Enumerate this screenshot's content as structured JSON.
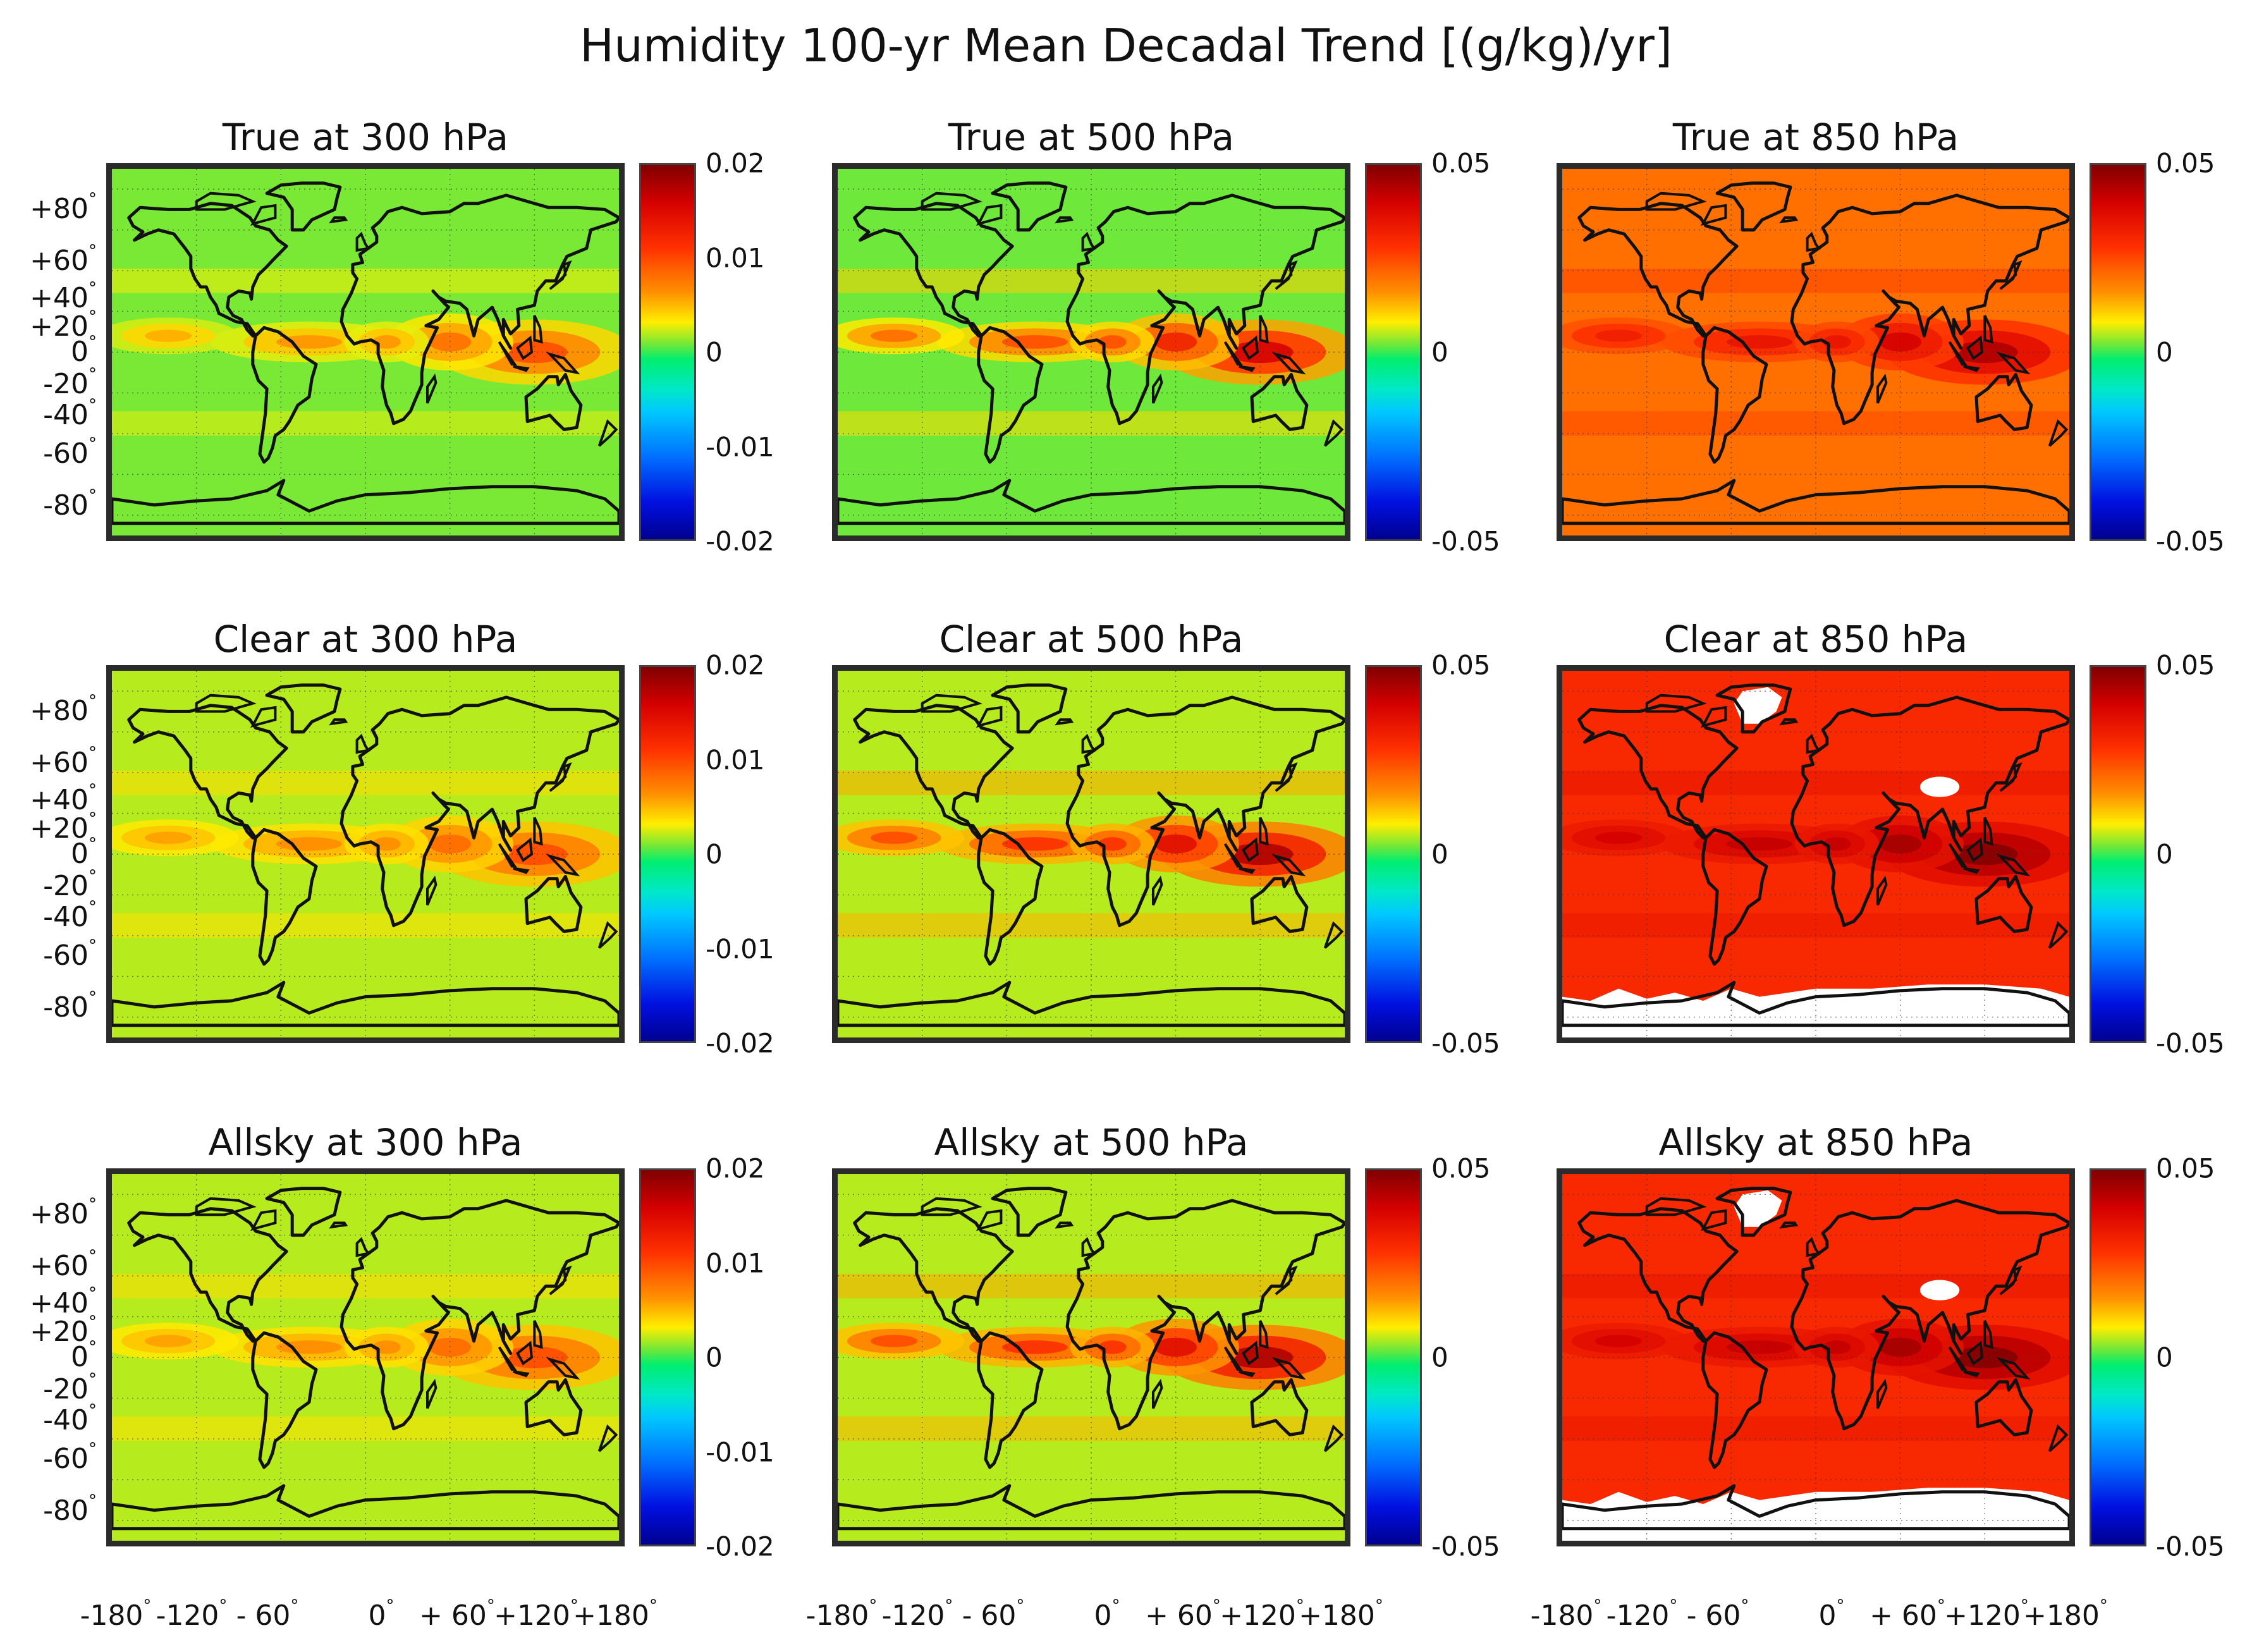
{
  "title": "Humidity 100-yr Mean Decadal Trend [(g/kg)/yr]",
  "lat_labels": [
    "+80",
    "+60",
    "+40",
    "+20",
    "0",
    "-20",
    "-40",
    "-60",
    "-80"
  ],
  "lon_labels": [
    "-180",
    "-120",
    "- 60",
    "0",
    "+ 60",
    "+120",
    "+180"
  ],
  "degree_symbol": "°",
  "colormap": [
    "#800000",
    "#d40000",
    "#ff3000",
    "#ff9000",
    "#ffee00",
    "#6ee83a",
    "#00ee70",
    "#00e8c8",
    "#00c8ff",
    "#0070ff",
    "#0010e0",
    "#00008f"
  ],
  "chart_data": [
    {
      "type": "heatmap",
      "title": "True at 300 hPa",
      "clim": [
        -0.02,
        0.02
      ],
      "colorbar_ticks": [
        "0.02",
        "0.01",
        "0",
        "-0.01",
        "-0.02"
      ],
      "xlim": [
        -180,
        180
      ],
      "ylim": [
        -90,
        90
      ],
      "typical_trend": 0.001,
      "max_trend": 0.01
    },
    {
      "type": "heatmap",
      "title": "True at 500 hPa",
      "clim": [
        -0.05,
        0.05
      ],
      "colorbar_ticks": [
        "0.05",
        "0",
        "-0.05"
      ],
      "xlim": [
        -180,
        180
      ],
      "ylim": [
        -90,
        90
      ],
      "typical_trend": 0.002,
      "max_trend": 0.04
    },
    {
      "type": "heatmap",
      "title": "True at 850 hPa",
      "clim": [
        -0.05,
        0.05
      ],
      "colorbar_ticks": [
        "0.05",
        "0",
        "-0.05"
      ],
      "xlim": [
        -180,
        180
      ],
      "ylim": [
        -90,
        90
      ],
      "typical_trend": 0.02,
      "max_trend": 0.045
    },
    {
      "type": "heatmap",
      "title": "Clear at 300 hPa",
      "clim": [
        -0.02,
        0.02
      ],
      "colorbar_ticks": [
        "0.02",
        "0.01",
        "0",
        "-0.01",
        "-0.02"
      ],
      "xlim": [
        -180,
        180
      ],
      "ylim": [
        -90,
        90
      ],
      "typical_trend": 0.002,
      "max_trend": 0.01
    },
    {
      "type": "heatmap",
      "title": "Clear at 500 hPa",
      "clim": [
        -0.05,
        0.05
      ],
      "colorbar_ticks": [
        "0.05",
        "0",
        "-0.05"
      ],
      "xlim": [
        -180,
        180
      ],
      "ylim": [
        -90,
        90
      ],
      "typical_trend": 0.005,
      "max_trend": 0.045
    },
    {
      "type": "heatmap",
      "title": "Clear at 850 hPa",
      "clim": [
        -0.05,
        0.05
      ],
      "colorbar_ticks": [
        "0.05",
        "0",
        "-0.05"
      ],
      "xlim": [
        -180,
        180
      ],
      "ylim": [
        -90,
        90
      ],
      "typical_trend": 0.03,
      "max_trend": 0.05,
      "missing_data": [
        "Antarctica",
        "Greenland",
        "Tibetan Plateau"
      ]
    },
    {
      "type": "heatmap",
      "title": "Allsky at 300 hPa",
      "clim": [
        -0.02,
        0.02
      ],
      "colorbar_ticks": [
        "0.02",
        "0.01",
        "0",
        "-0.01",
        "-0.02"
      ],
      "xlim": [
        -180,
        180
      ],
      "ylim": [
        -90,
        90
      ],
      "typical_trend": 0.002,
      "max_trend": 0.01
    },
    {
      "type": "heatmap",
      "title": "Allsky at 500 hPa",
      "clim": [
        -0.05,
        0.05
      ],
      "colorbar_ticks": [
        "0.05",
        "0",
        "-0.05"
      ],
      "xlim": [
        -180,
        180
      ],
      "ylim": [
        -90,
        90
      ],
      "typical_trend": 0.005,
      "max_trend": 0.045
    },
    {
      "type": "heatmap",
      "title": "Allsky at 850 hPa",
      "clim": [
        -0.05,
        0.05
      ],
      "colorbar_ticks": [
        "0.05",
        "0",
        "-0.05"
      ],
      "xlim": [
        -180,
        180
      ],
      "ylim": [
        -90,
        90
      ],
      "typical_trend": 0.03,
      "max_trend": 0.05,
      "missing_data": [
        "Antarctica",
        "Greenland",
        "Tibetan Plateau"
      ]
    }
  ]
}
